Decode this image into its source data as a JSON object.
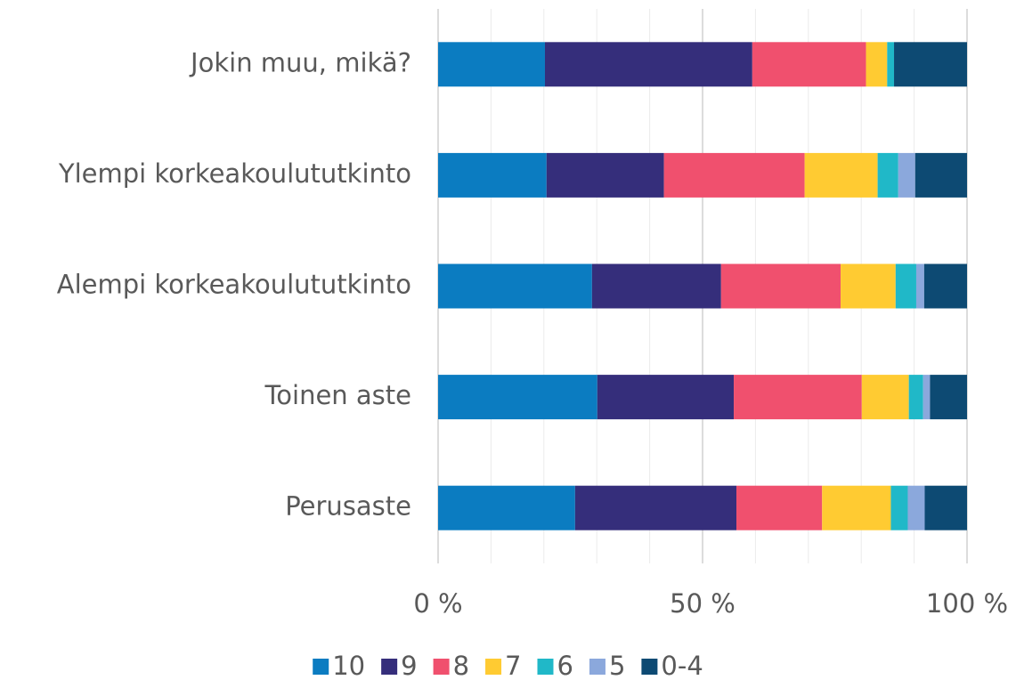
{
  "chart_data": {
    "type": "stacked_bar_horizontal",
    "categories": [
      "Jokin muu, mikä?",
      "Ylempi korkeakoulututkinto",
      "Alempi korkeakoulututkinto",
      "Toinen aste",
      "Perusaste"
    ],
    "series": [
      {
        "name": "10",
        "color": "#0b7cc1",
        "values": [
          20.2,
          20.5,
          29.1,
          30.1,
          25.9
        ]
      },
      {
        "name": "9",
        "color": "#352e7b",
        "values": [
          39.2,
          22.2,
          24.4,
          25.8,
          30.5
        ]
      },
      {
        "name": "8",
        "color": "#f0506e",
        "values": [
          21.5,
          26.6,
          22.6,
          24.2,
          16.2
        ]
      },
      {
        "name": "7",
        "color": "#ffcb32",
        "values": [
          4.0,
          13.8,
          10.4,
          8.9,
          13.0
        ]
      },
      {
        "name": "6",
        "color": "#20b8c8",
        "values": [
          1.3,
          3.9,
          3.9,
          2.7,
          3.2
        ]
      },
      {
        "name": "5",
        "color": "#8ba8dc",
        "values": [
          0,
          3.2,
          1.5,
          1.3,
          3.2
        ]
      },
      {
        "name": "0-4",
        "color": "#0d4a73",
        "values": [
          13.8,
          9.8,
          8.1,
          7.0,
          8.0
        ]
      }
    ],
    "xlim": [
      0,
      100
    ],
    "xticks": [
      {
        "value": 0,
        "label": "0 %"
      },
      {
        "value": 50,
        "label": "50 %"
      },
      {
        "value": 100,
        "label": "100 %"
      }
    ],
    "xminorticks": [
      10,
      20,
      30,
      40,
      60,
      70,
      80,
      90
    ],
    "grid": true,
    "legend": "bottom"
  }
}
